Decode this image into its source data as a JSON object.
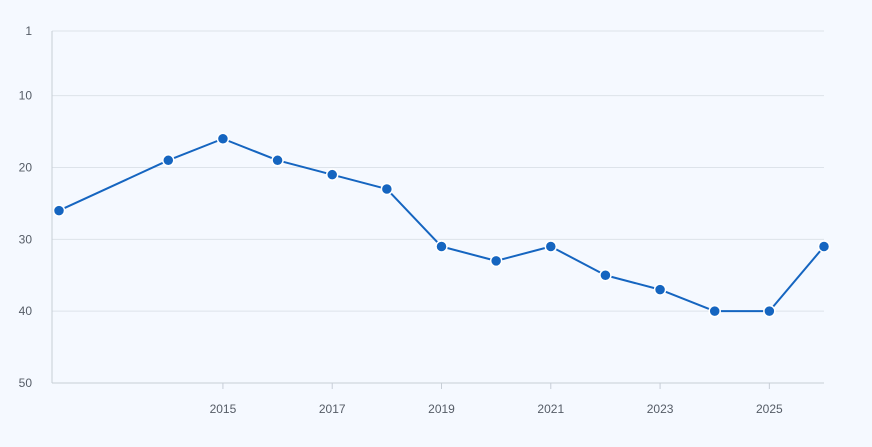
{
  "chart_data": {
    "type": "line",
    "title": "",
    "xlabel": "",
    "ylabel": "",
    "y_axis_inverted": true,
    "ylim": [
      1,
      50
    ],
    "y_ticks": [
      1,
      10,
      20,
      30,
      40,
      50
    ],
    "x_ticks": [
      2015,
      2017,
      2019,
      2021,
      2023,
      2025
    ],
    "xlim": [
      2012,
      2026
    ],
    "grid": "horizontal",
    "legend": "none",
    "series": [
      {
        "color": "#1565c0",
        "points": [
          {
            "x": 2012,
            "y": 26
          },
          {
            "x": 2014,
            "y": 19
          },
          {
            "x": 2015,
            "y": 16
          },
          {
            "x": 2016,
            "y": 19
          },
          {
            "x": 2017,
            "y": 21
          },
          {
            "x": 2018,
            "y": 23
          },
          {
            "x": 2019,
            "y": 31
          },
          {
            "x": 2020,
            "y": 33
          },
          {
            "x": 2021,
            "y": 31
          },
          {
            "x": 2022,
            "y": 35
          },
          {
            "x": 2023,
            "y": 37
          },
          {
            "x": 2024,
            "y": 40
          },
          {
            "x": 2025,
            "y": 40
          },
          {
            "x": 2026,
            "y": 31
          }
        ]
      }
    ]
  }
}
